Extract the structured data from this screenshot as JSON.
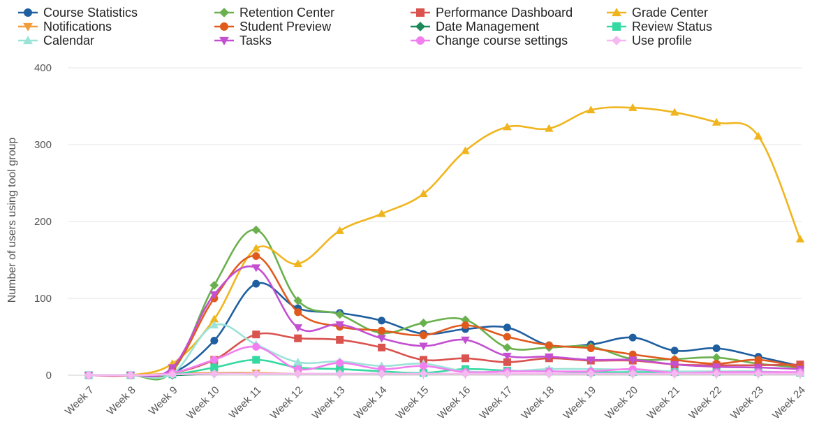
{
  "chart_data": {
    "type": "line",
    "title": "",
    "xlabel": "",
    "ylabel": "Number of users using tool group",
    "ylim": [
      0,
      400
    ],
    "yticks": [
      0,
      100,
      200,
      300,
      400
    ],
    "grid": true,
    "legend_position": "top",
    "categories": [
      "Week 7",
      "Week 8",
      "Week 9",
      "Week 10",
      "Week 11",
      "Week 12",
      "Week 13",
      "Week 14",
      "Week 15",
      "Week 16",
      "Week 17",
      "Week 18",
      "Week 19",
      "Week 20",
      "Week 21",
      "Week 22",
      "Week 23",
      "Week 24"
    ],
    "series": [
      {
        "name": "Course Statistics",
        "color": "#1f5fa0",
        "marker": "circle",
        "values": [
          0,
          0,
          3,
          45,
          119,
          87,
          81,
          71,
          54,
          60,
          62,
          39,
          40,
          49,
          32,
          35,
          24,
          12
        ]
      },
      {
        "name": "Retention Center",
        "color": "#6ab04c",
        "marker": "diamond",
        "values": [
          0,
          0,
          5,
          117,
          189,
          97,
          79,
          55,
          68,
          72,
          36,
          36,
          37,
          21,
          21,
          23,
          15,
          10
        ]
      },
      {
        "name": "Performance Dashboard",
        "color": "#d9534f",
        "marker": "square",
        "values": [
          0,
          0,
          3,
          20,
          53,
          48,
          46,
          36,
          20,
          22,
          17,
          22,
          19,
          19,
          14,
          13,
          13,
          14
        ]
      },
      {
        "name": "Grade Center",
        "color": "#f0b51e",
        "marker": "triangle-up",
        "values": [
          0,
          0,
          15,
          73,
          165,
          145,
          188,
          210,
          236,
          292,
          323,
          321,
          345,
          348,
          342,
          329,
          311,
          177
        ]
      },
      {
        "name": "Notifications",
        "color": "#f39c3c",
        "marker": "triangle-down",
        "values": [
          0,
          0,
          2,
          3,
          3,
          2,
          2,
          2,
          2,
          2,
          2,
          2,
          2,
          2,
          2,
          2,
          2,
          2
        ]
      },
      {
        "name": "Student Preview",
        "color": "#e05a1e",
        "marker": "circle",
        "values": [
          0,
          0,
          8,
          100,
          155,
          82,
          63,
          58,
          52,
          65,
          50,
          39,
          35,
          27,
          20,
          15,
          20,
          10
        ]
      },
      {
        "name": "Date Management",
        "color": "#1b8a5a",
        "marker": "diamond",
        "values": [
          0,
          0,
          0,
          2,
          2,
          2,
          2,
          2,
          2,
          2,
          2,
          2,
          2,
          2,
          2,
          2,
          2,
          2
        ]
      },
      {
        "name": "Review Status",
        "color": "#33d9a0",
        "marker": "square",
        "values": [
          0,
          0,
          1,
          10,
          20,
          10,
          8,
          5,
          3,
          8,
          6,
          5,
          4,
          4,
          4,
          4,
          4,
          3
        ]
      },
      {
        "name": "Calendar",
        "color": "#9be3d8",
        "marker": "triangle-up",
        "values": [
          0,
          0,
          2,
          65,
          40,
          17,
          18,
          12,
          15,
          5,
          5,
          8,
          8,
          7,
          5,
          5,
          5,
          3
        ]
      },
      {
        "name": "Tasks",
        "color": "#c34fd1",
        "marker": "triangle-down",
        "values": [
          0,
          0,
          10,
          105,
          140,
          62,
          66,
          48,
          38,
          46,
          25,
          24,
          20,
          20,
          14,
          11,
          10,
          8
        ]
      },
      {
        "name": "Change course settings",
        "color": "#f27ff0",
        "marker": "circle",
        "values": [
          0,
          0,
          3,
          20,
          37,
          8,
          16,
          8,
          12,
          4,
          5,
          5,
          5,
          8,
          3,
          4,
          4,
          4
        ]
      },
      {
        "name": "Use profile",
        "color": "#f5b8f0",
        "marker": "diamond",
        "values": [
          0,
          0,
          1,
          2,
          2,
          2,
          2,
          2,
          2,
          2,
          2,
          2,
          2,
          2,
          2,
          2,
          2,
          2
        ]
      }
    ]
  }
}
